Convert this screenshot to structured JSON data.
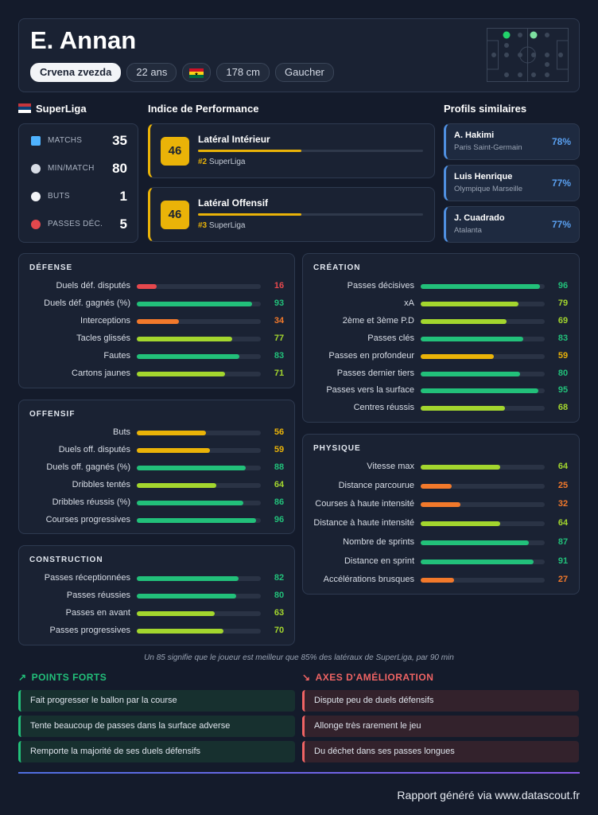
{
  "header": {
    "name": "E. Annan",
    "tags": [
      "Crvena zvezda",
      "22 ans",
      "178 cm",
      "Gaucher"
    ]
  },
  "league": {
    "name": "SuperLiga",
    "stats": [
      {
        "label": "MATCHS",
        "value": 35
      },
      {
        "label": "MIN/MATCH",
        "value": 80
      },
      {
        "label": "BUTS",
        "value": 1
      },
      {
        "label": "PASSES DÉC.",
        "value": 5
      }
    ]
  },
  "performance": {
    "title": "Indice de Performance",
    "roles": [
      {
        "score": 46,
        "name": "Latéral Intérieur",
        "rank": "#2",
        "league": "SuperLiga"
      },
      {
        "score": 46,
        "name": "Latéral Offensif",
        "rank": "#3",
        "league": "SuperLiga"
      }
    ]
  },
  "similar": {
    "title": "Profils similaires",
    "players": [
      {
        "name": "A. Hakimi",
        "club": "Paris Saint-Germain",
        "similarity": "78%"
      },
      {
        "name": "Luis Henrique",
        "club": "Olympique Marseille",
        "similarity": "77%"
      },
      {
        "name": "J. Cuadrado",
        "club": "Atalanta",
        "similarity": "77%"
      }
    ]
  },
  "sections": [
    {
      "title": "DÉFENSE",
      "metrics": [
        {
          "label": "Duels déf. disputés",
          "value": 16
        },
        {
          "label": "Duels déf. gagnés (%)",
          "value": 93
        },
        {
          "label": "Interceptions",
          "value": 34
        },
        {
          "label": "Tacles glissés",
          "value": 77
        },
        {
          "label": "Fautes",
          "value": 83
        },
        {
          "label": "Cartons jaunes",
          "value": 71
        }
      ]
    },
    {
      "title": "OFFENSIF",
      "metrics": [
        {
          "label": "Buts",
          "value": 56
        },
        {
          "label": "Duels off. disputés",
          "value": 59
        },
        {
          "label": "Duels off. gagnés (%)",
          "value": 88
        },
        {
          "label": "Dribbles tentés",
          "value": 64
        },
        {
          "label": "Dribbles réussis (%)",
          "value": 86
        },
        {
          "label": "Courses progressives",
          "value": 96
        }
      ]
    },
    {
      "title": "CONSTRUCTION",
      "metrics": [
        {
          "label": "Passes réceptionnées",
          "value": 82
        },
        {
          "label": "Passes réussies",
          "value": 80
        },
        {
          "label": "Passes en avant",
          "value": 63
        },
        {
          "label": "Passes progressives",
          "value": 70
        }
      ]
    },
    {
      "title": "CRÉATION",
      "metrics": [
        {
          "label": "Passes décisives",
          "value": 96
        },
        {
          "label": "xA",
          "value": 79
        },
        {
          "label": "2ème et 3ème P.D",
          "value": 69
        },
        {
          "label": "Passes clés",
          "value": 83
        },
        {
          "label": "Passes en profondeur",
          "value": 59
        },
        {
          "label": "Passes dernier tiers",
          "value": 80
        },
        {
          "label": "Passes vers la surface",
          "value": 95
        },
        {
          "label": "Centres réussis",
          "value": 68
        }
      ]
    },
    {
      "title": "PHYSIQUE",
      "metrics": [
        {
          "label": "Vitesse max",
          "value": 64
        },
        {
          "label": "Distance parcourue",
          "value": 25
        },
        {
          "label": "Courses à haute intensité",
          "value": 32
        },
        {
          "label": "Distance à haute intensité",
          "value": 64
        },
        {
          "label": "Nombre de sprints",
          "value": 87
        },
        {
          "label": "Distance en sprint",
          "value": 91
        },
        {
          "label": "Accélérations brusques",
          "value": 27
        }
      ]
    }
  ],
  "note": "Un 85 signifie que le joueur est meilleur que 85% des latéraux de SuperLiga, par 90 min",
  "strengths": {
    "title": "POINTS FORTS",
    "items": [
      "Fait progresser le ballon par la course",
      "Tente beaucoup de passes dans la surface adverse",
      "Remporte la majorité de ses duels défensifs"
    ]
  },
  "improvements": {
    "title": "AXES D'AMÉLIORATION",
    "items": [
      "Dispute peu de duels défensifs",
      "Allonge très rarement le jeu",
      "Du déchet dans ses passes longues"
    ]
  },
  "footer": "Rapport généré via www.datascout.fr"
}
